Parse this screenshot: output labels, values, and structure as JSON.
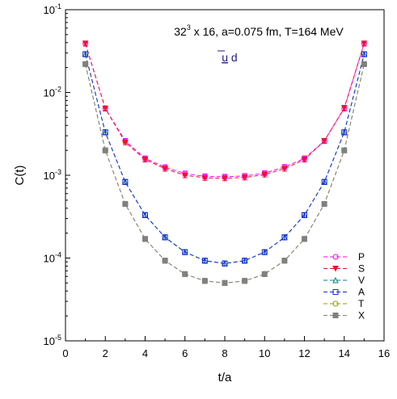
{
  "chart_data": {
    "type": "line",
    "title_main": "32",
    "title_sup": "3",
    "title_rest": " x 16, a=0.075 fm, T=164 MeV",
    "subtitle_u": "u",
    "subtitle_rest": " d",
    "xlabel": "t/a",
    "ylabel": "C(t)",
    "xlim": [
      0,
      16
    ],
    "ylim": [
      1e-05,
      0.1
    ],
    "yscale": "log",
    "grid": false,
    "legend_position": "bottom-right",
    "xticks": [
      "0",
      "2",
      "4",
      "6",
      "8",
      "10",
      "12",
      "14",
      "16"
    ],
    "yticks": [
      {
        "base": "10",
        "exp": "-5",
        "value": 1e-05
      },
      {
        "base": "10",
        "exp": "-4",
        "value": 0.0001
      },
      {
        "base": "10",
        "exp": "-3",
        "value": 0.001
      },
      {
        "base": "10",
        "exp": "-2",
        "value": 0.01
      },
      {
        "base": "10",
        "exp": "-1",
        "value": 0.1
      }
    ],
    "x": [
      1,
      2,
      3,
      4,
      5,
      6,
      7,
      8,
      9,
      10,
      11,
      12,
      13,
      14,
      15
    ],
    "series": [
      {
        "name": "P",
        "color": "#ff00ff",
        "marker": "circle-open",
        "values": [
          0.039,
          0.0064,
          0.0026,
          0.0016,
          0.00125,
          0.00105,
          0.00097,
          0.00096,
          0.00098,
          0.00106,
          0.00126,
          0.0016,
          0.0026,
          0.0064,
          0.039
        ]
      },
      {
        "name": "S",
        "color": "#ee1133",
        "marker": "triangle-down",
        "values": [
          0.039,
          0.0064,
          0.0025,
          0.00155,
          0.0012,
          0.001,
          0.00093,
          0.00092,
          0.00094,
          0.00102,
          0.0012,
          0.00155,
          0.0026,
          0.0065,
          0.039
        ]
      },
      {
        "name": "V",
        "color": "#008080",
        "marker": "triangle-up-open",
        "values": [
          0.029,
          0.0033,
          0.00083,
          0.00033,
          0.000178,
          0.000118,
          9.3e-05,
          8.6e-05,
          9.3e-05,
          0.000118,
          0.000178,
          0.00033,
          0.00083,
          0.0033,
          0.029
        ]
      },
      {
        "name": "A",
        "color": "#1a2bd6",
        "marker": "square-open",
        "values": [
          0.029,
          0.0033,
          0.00083,
          0.00033,
          0.000178,
          0.000118,
          9.3e-05,
          8.6e-05,
          9.3e-05,
          0.000118,
          0.000178,
          0.00033,
          0.00083,
          0.0033,
          0.029
        ]
      },
      {
        "name": "T",
        "color": "#999900",
        "marker": "circle-open",
        "values": [
          0.022,
          0.002,
          0.00045,
          0.00017,
          9.3e-05,
          6.4e-05,
          5.3e-05,
          5e-05,
          5.3e-05,
          6.4e-05,
          9.3e-05,
          0.00017,
          0.00045,
          0.002,
          0.022
        ]
      },
      {
        "name": "X",
        "color": "#808080",
        "marker": "square-filled",
        "values": [
          0.022,
          0.002,
          0.00045,
          0.00017,
          9.3e-05,
          6.4e-05,
          5.3e-05,
          5e-05,
          5.3e-05,
          6.4e-05,
          9.3e-05,
          0.00017,
          0.00045,
          0.002,
          0.022
        ]
      }
    ]
  }
}
